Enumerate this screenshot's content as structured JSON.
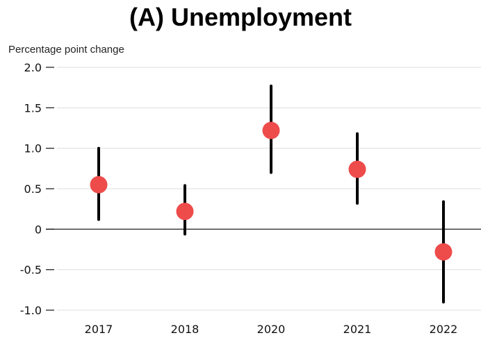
{
  "chart_data": {
    "type": "scatter",
    "title": "(A) Unemployment",
    "ylabel": "Percentage point change",
    "xlabel": "",
    "categories": [
      "2017",
      "2018",
      "2020",
      "2021",
      "2022"
    ],
    "series": [
      {
        "values": [
          0.55,
          0.22,
          1.22,
          0.74,
          -0.28
        ],
        "lower": [
          0.12,
          -0.06,
          0.7,
          0.32,
          -0.9
        ],
        "upper": [
          1.0,
          0.54,
          1.77,
          1.18,
          0.34
        ]
      }
    ],
    "ylim": [
      -1.0,
      2.0
    ],
    "yticks": [
      2.0,
      1.5,
      1.0,
      0.5,
      0,
      -0.5,
      -1.0
    ],
    "ytick_labels": [
      "2.0",
      "1.5",
      "1.0",
      "0.5",
      "0",
      "-0.5",
      "-1.0"
    ],
    "grid": true,
    "colors": {
      "point": "#ee4b4b",
      "errorbar": "#000000",
      "grid": "#dddddd",
      "zero_line": "#333333"
    }
  }
}
